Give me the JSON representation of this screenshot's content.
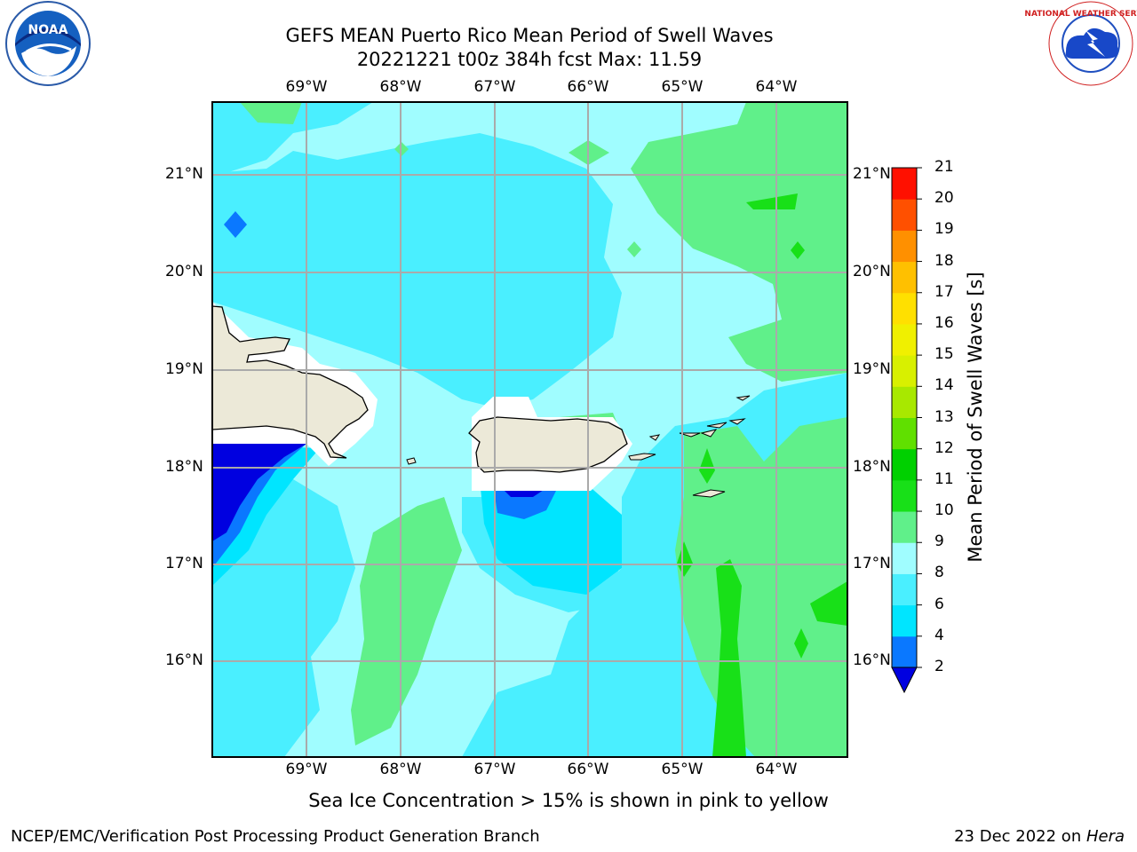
{
  "title_line1": "GEFS MEAN Puerto Rico Mean Period of Swell Waves",
  "title_line2": "20221221 t00z 384h fcst   Max: 11.59",
  "lon_labels": [
    "69°W",
    "68°W",
    "67°W",
    "66°W",
    "65°W",
    "64°W"
  ],
  "lat_labels": [
    "21°N",
    "20°N",
    "19°N",
    "18°N",
    "17°N",
    "16°N"
  ],
  "colorbar": {
    "title": "Mean Period of Swell Waves [s]",
    "ticks": [
      "2",
      "4",
      "6",
      "8",
      "9",
      "10",
      "11",
      "12",
      "13",
      "14",
      "15",
      "16",
      "17",
      "18",
      "19",
      "20",
      "21"
    ],
    "colors": [
      "#0000e0",
      "#0a78ff",
      "#00e5ff",
      "#4aefff",
      "#a0fdff",
      "#60f08a",
      "#18e018",
      "#00d000",
      "#60e000",
      "#a8e800",
      "#d8f000",
      "#f0f000",
      "#ffe000",
      "#ffc000",
      "#ff9000",
      "#ff5000",
      "#ff1000",
      "#ff0000"
    ]
  },
  "map_colors": {
    "land": "#ece9d8",
    "c_deep": "#0000e0",
    "c_blue": "#0a78ff",
    "c_cyan": "#00e5ff",
    "c_lcyan": "#4aefff",
    "c_pale": "#a0fdff",
    "c_lgreen": "#60f08a",
    "c_green": "#18e018"
  },
  "note": "Sea Ice Concentration > 15% is shown in pink to yellow",
  "footer_left": "NCEP/EMC/Verification Post Processing Product Generation Branch",
  "footer_right_date": "23 Dec 2022 on ",
  "footer_right_machine": "Hera",
  "logos": {
    "left": "NOAA",
    "right": "NATIONAL WEATHER SERVICE"
  }
}
